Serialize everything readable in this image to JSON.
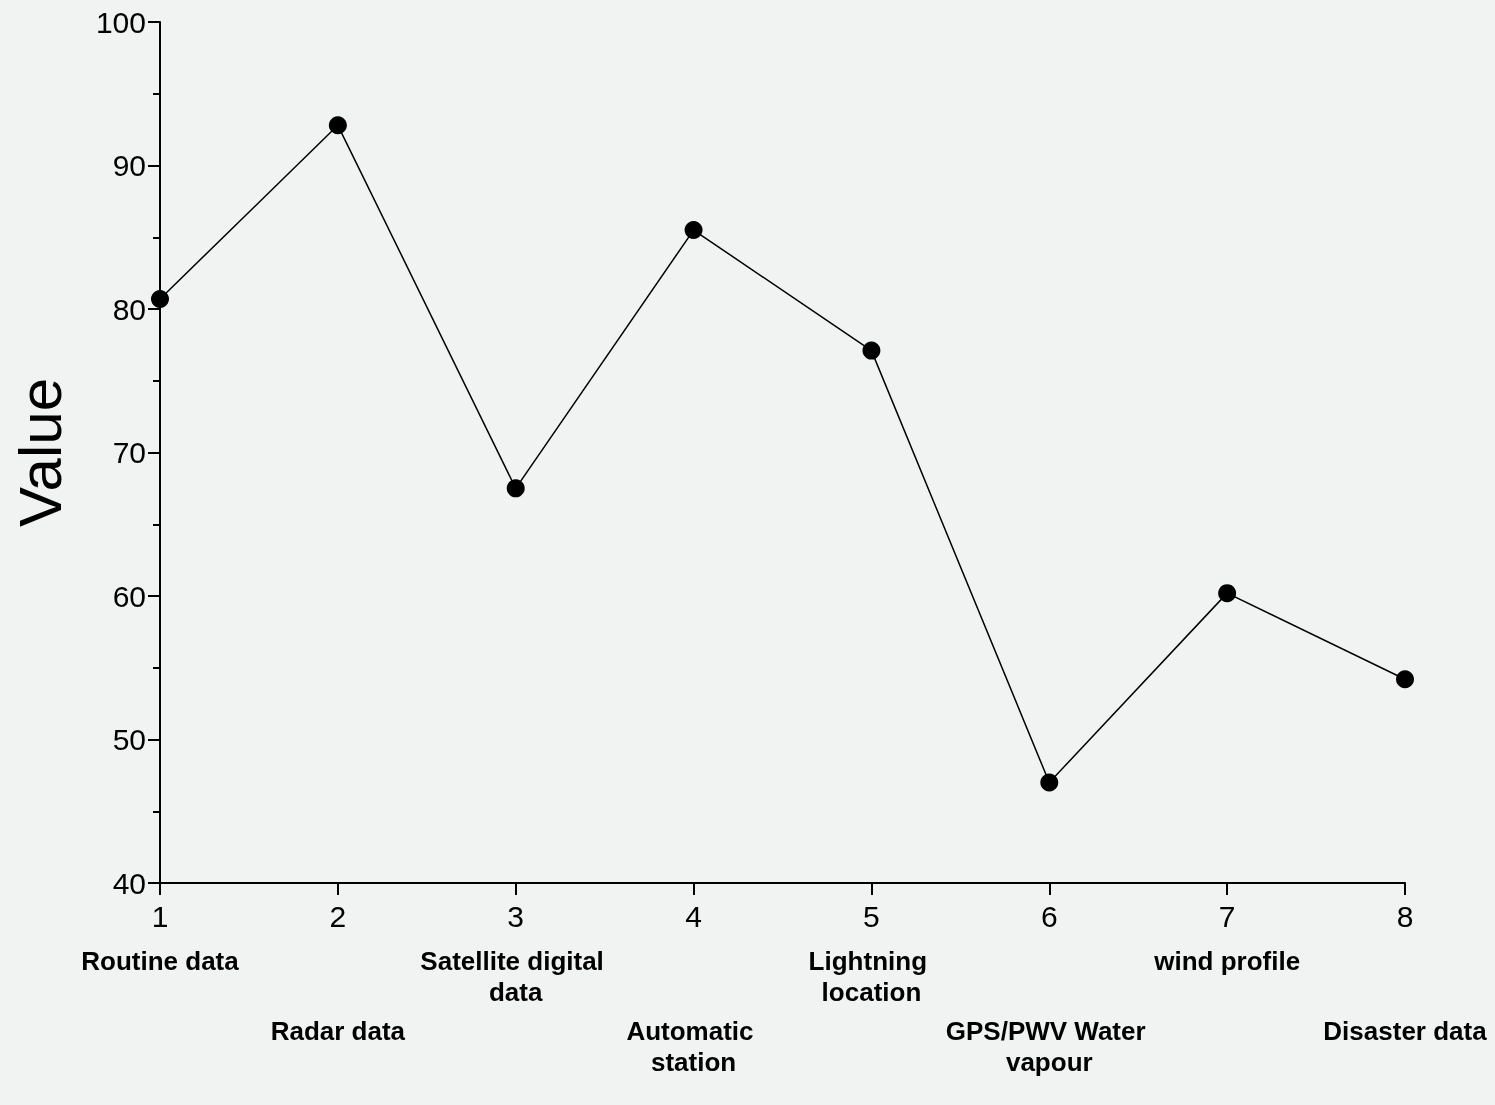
{
  "chart_data": {
    "type": "line",
    "ylabel": "Value",
    "x": [
      1,
      2,
      3,
      4,
      5,
      6,
      7,
      8
    ],
    "values": [
      80.7,
      92.8,
      67.5,
      85.5,
      77.1,
      47,
      60.2,
      54.2
    ],
    "color": "#000000",
    "marker": "circle",
    "line_style": "solid",
    "xlim": [
      1,
      8
    ],
    "xticks": [
      1,
      2,
      3,
      4,
      5,
      6,
      7,
      8
    ],
    "ylim": [
      40,
      100
    ],
    "yticks": [
      40,
      50,
      60,
      70,
      80,
      90,
      100
    ],
    "grid": false,
    "annotations": [
      "Routine data",
      "Radar data",
      "Satellite digital data",
      "Automatic station",
      "Lightning location",
      "GPS/PWV Water vapour",
      "wind profile",
      "Disaster data"
    ]
  }
}
